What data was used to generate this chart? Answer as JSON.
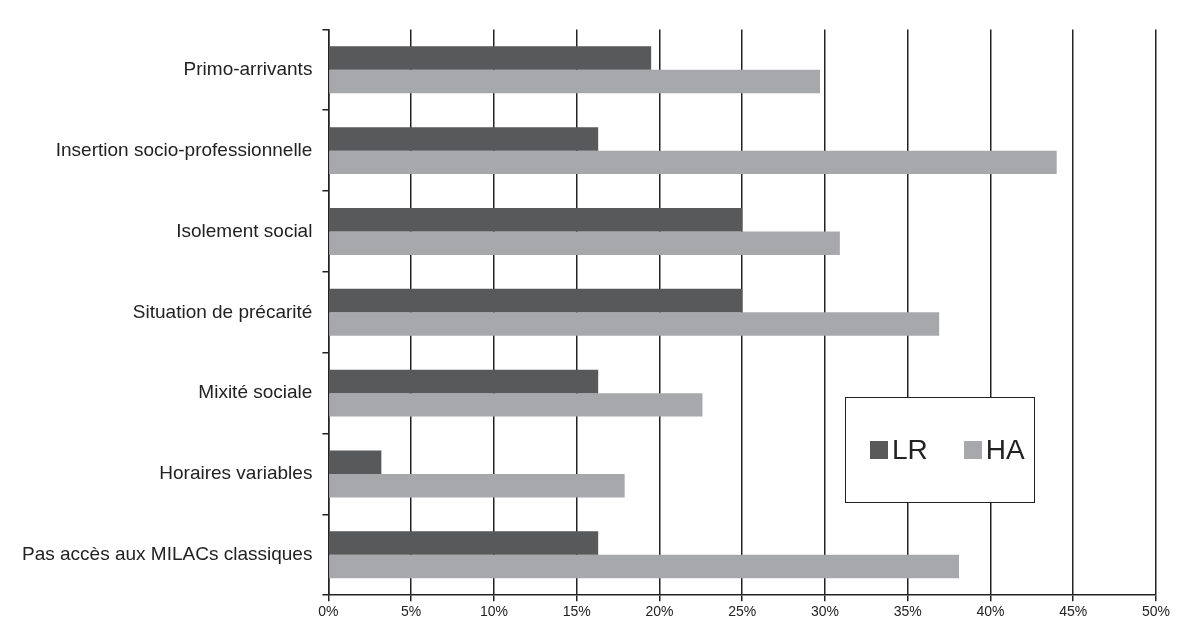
{
  "chart_data": {
    "type": "bar",
    "orientation": "horizontal",
    "categories": [
      "Primo-arrivants",
      "Insertion socio-professionnelle",
      "Isolement social",
      "Situation de précarité",
      "Mixité sociale",
      "Horaires variables",
      "Pas accès aux MILACs classiques"
    ],
    "series": [
      {
        "name": "LR",
        "color": "#58595b",
        "values": [
          19.5,
          16.3,
          25.0,
          25.0,
          16.3,
          3.2,
          16.3
        ]
      },
      {
        "name": "HA",
        "color": "#a7a8ab",
        "values": [
          29.7,
          44.0,
          30.9,
          36.9,
          22.6,
          17.9,
          38.1
        ]
      }
    ],
    "xlim": [
      0,
      50
    ],
    "xticks": [
      {
        "value": 0,
        "label": "0%"
      },
      {
        "value": 5,
        "label": "5%"
      },
      {
        "value": 10,
        "label": "10%"
      },
      {
        "value": 15,
        "label": "15%"
      },
      {
        "value": 20,
        "label": "20%"
      },
      {
        "value": 25,
        "label": "25%"
      },
      {
        "value": 30,
        "label": "30%"
      },
      {
        "value": 35,
        "label": "35%"
      },
      {
        "value": 40,
        "label": "40%"
      },
      {
        "value": 45,
        "label": "45%"
      },
      {
        "value": 50,
        "label": "50%"
      }
    ],
    "grid": "x",
    "legend": "bottom right"
  }
}
